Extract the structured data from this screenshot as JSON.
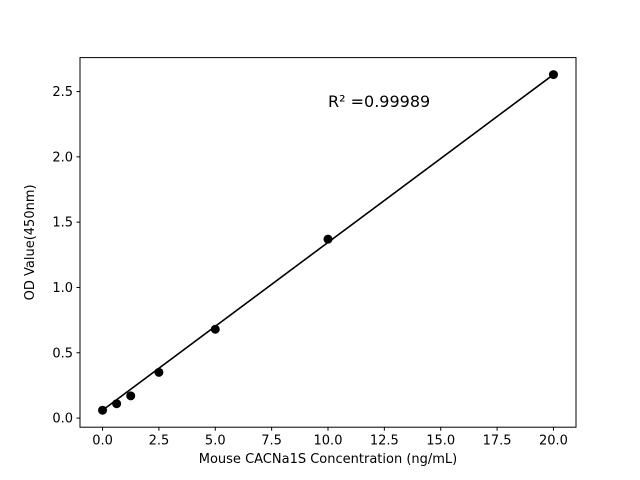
{
  "chart_data": {
    "type": "scatter",
    "title": "",
    "xlabel": "Mouse CACNa1S Concentration (ng/mL)",
    "ylabel": "OD Value(450nm)",
    "annotation": {
      "text": "R² =0.99989",
      "x": 10.0,
      "y": 2.38
    },
    "x": [
      0,
      0.625,
      1.25,
      2.5,
      5,
      10,
      20
    ],
    "y": [
      0.06,
      0.11,
      0.17,
      0.35,
      0.68,
      1.37,
      2.63
    ],
    "fit_line": {
      "x": [
        0,
        20
      ],
      "y": [
        0.06,
        2.63
      ]
    },
    "xlim": [
      -1,
      21
    ],
    "ylim": [
      -0.07,
      2.76
    ],
    "xticks": {
      "values": [
        0,
        2.5,
        5,
        7.5,
        10,
        12.5,
        15,
        17.5,
        20
      ],
      "labels": [
        "0.0",
        "2.5",
        "5.0",
        "7.5",
        "10.0",
        "12.5",
        "15.0",
        "17.5",
        "20.0"
      ]
    },
    "yticks": {
      "values": [
        0,
        0.5,
        1,
        1.5,
        2,
        2.5
      ],
      "labels": [
        "0.0",
        "0.5",
        "1.0",
        "1.5",
        "2.0",
        "2.5"
      ]
    },
    "grid": false,
    "legend": null,
    "marker_color": "#000000",
    "line_color": "#000000",
    "axis_color": "#000000",
    "background": "#ffffff"
  }
}
